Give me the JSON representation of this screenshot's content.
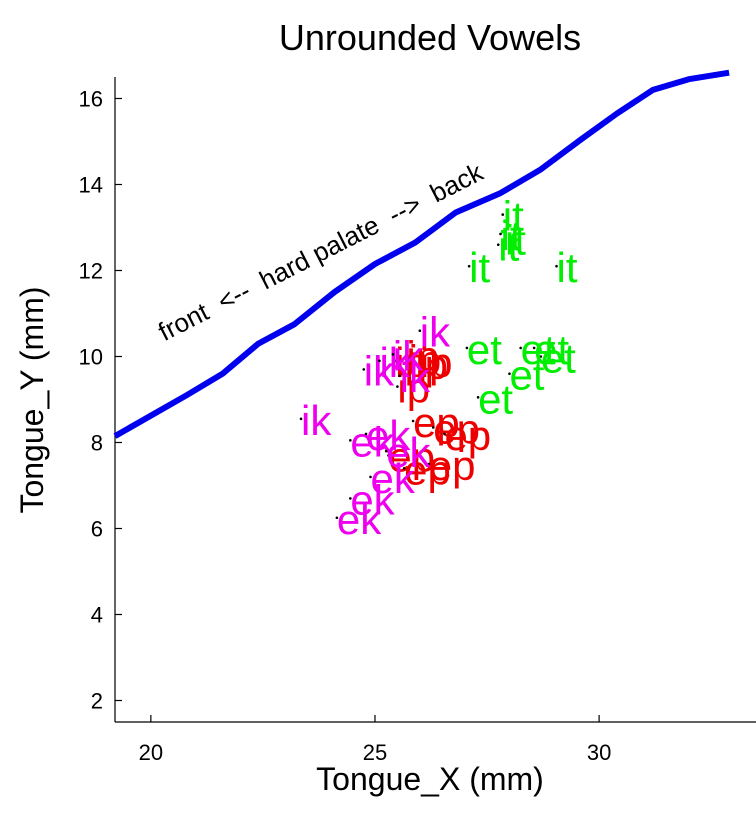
{
  "chart_data": {
    "type": "scatter",
    "title": "Unrounded Vowels",
    "xlabel": "Tongue_X (mm)",
    "ylabel": "Tongue_Y (mm)",
    "xlim": [
      19.2,
      33.5
    ],
    "ylim": [
      1.5,
      16.5
    ],
    "xticks": [
      20,
      25,
      30
    ],
    "yticks": [
      2,
      4,
      6,
      8,
      10,
      12,
      14,
      16
    ],
    "grid": false,
    "palate": {
      "color": "#0000ee",
      "x": [
        19.2,
        20.8,
        21.6,
        22.4,
        23.2,
        24.1,
        25.0,
        25.9,
        26.8,
        27.8,
        28.7,
        29.6,
        30.4,
        31.2,
        32.0,
        32.9
      ],
      "y": [
        8.15,
        9.1,
        9.6,
        10.3,
        10.75,
        11.5,
        12.15,
        12.65,
        13.35,
        13.8,
        14.35,
        15.05,
        15.65,
        16.2,
        16.45,
        16.6
      ]
    },
    "annotations": [
      {
        "text": "front  <--  hard palate  -->  back",
        "x": 20.3,
        "y": 10.35,
        "angle": -27
      }
    ],
    "series": [
      {
        "name": "it",
        "color": "#00ee00",
        "points": [
          {
            "x": 27.75,
            "y": 12.6,
            "label": "it"
          },
          {
            "x": 27.9,
            "y": 12.75,
            "label": "it"
          },
          {
            "x": 27.8,
            "y": 12.85,
            "label": "it"
          },
          {
            "x": 27.85,
            "y": 13.3,
            "label": "it"
          },
          {
            "x": 27.1,
            "y": 12.1,
            "label": "it"
          },
          {
            "x": 29.05,
            "y": 12.1,
            "label": "it"
          }
        ]
      },
      {
        "name": "et",
        "color": "#00ee00",
        "points": [
          {
            "x": 27.05,
            "y": 10.2,
            "label": "et"
          },
          {
            "x": 28.25,
            "y": 10.2,
            "label": "et"
          },
          {
            "x": 28.7,
            "y": 10.0,
            "label": "et"
          },
          {
            "x": 28.55,
            "y": 10.2,
            "label": "et"
          },
          {
            "x": 28.0,
            "y": 9.6,
            "label": "et"
          },
          {
            "x": 27.3,
            "y": 9.05,
            "label": "et"
          }
        ]
      },
      {
        "name": "ip",
        "color": "#ee0000",
        "points": [
          {
            "x": 25.45,
            "y": 9.9,
            "label": "ip"
          },
          {
            "x": 25.75,
            "y": 9.95,
            "label": "ip"
          },
          {
            "x": 25.9,
            "y": 9.85,
            "label": "ip"
          },
          {
            "x": 26.0,
            "y": 9.9,
            "label": "ip"
          },
          {
            "x": 25.7,
            "y": 10.05,
            "label": "ip"
          },
          {
            "x": 25.5,
            "y": 9.3,
            "label": "ip"
          }
        ]
      },
      {
        "name": "ep",
        "color": "#ee0000",
        "points": [
          {
            "x": 25.85,
            "y": 8.5,
            "label": "ep"
          },
          {
            "x": 26.3,
            "y": 8.35,
            "label": "ep"
          },
          {
            "x": 26.55,
            "y": 8.2,
            "label": "ep"
          },
          {
            "x": 25.3,
            "y": 7.7,
            "label": "ep"
          },
          {
            "x": 25.65,
            "y": 7.4,
            "label": "ep"
          },
          {
            "x": 26.2,
            "y": 7.5,
            "label": "ep"
          }
        ]
      },
      {
        "name": "ik",
        "color": "#ee00ee",
        "points": [
          {
            "x": 24.75,
            "y": 9.7,
            "label": "ik"
          },
          {
            "x": 25.1,
            "y": 9.9,
            "label": "ik"
          },
          {
            "x": 25.4,
            "y": 10.05,
            "label": "ik"
          },
          {
            "x": 25.55,
            "y": 9.55,
            "label": "ik"
          },
          {
            "x": 26.0,
            "y": 10.6,
            "label": "ik"
          },
          {
            "x": 23.35,
            "y": 8.55,
            "label": "ik"
          }
        ]
      },
      {
        "name": "ek",
        "color": "#ee00ee",
        "points": [
          {
            "x": 24.45,
            "y": 8.05,
            "label": "ek"
          },
          {
            "x": 24.8,
            "y": 8.2,
            "label": "ek"
          },
          {
            "x": 25.25,
            "y": 7.8,
            "label": "ek"
          },
          {
            "x": 24.9,
            "y": 7.2,
            "label": "ek"
          },
          {
            "x": 24.45,
            "y": 6.7,
            "label": "ek"
          },
          {
            "x": 24.15,
            "y": 6.25,
            "label": "ek"
          }
        ]
      }
    ]
  }
}
